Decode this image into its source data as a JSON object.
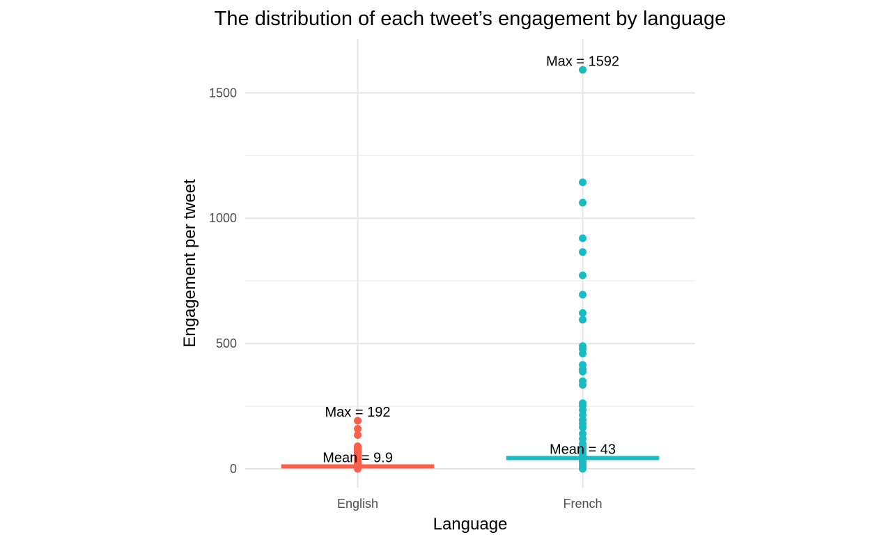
{
  "chart_data": {
    "type": "scatter",
    "title": "The distribution of each tweet’s engagement by language",
    "xlabel": "Language",
    "ylabel": "Engagement per tweet",
    "categories": [
      "English",
      "French"
    ],
    "ylim": [
      -75,
      1715
    ],
    "yticks": [
      0,
      500,
      1000,
      1500
    ],
    "grid": true,
    "legend": "none",
    "series": [
      {
        "category": "English",
        "color": "#F8604A",
        "points": [
          192,
          160,
          135,
          90,
          82,
          75,
          70,
          65,
          60,
          55,
          50,
          45,
          40,
          35,
          30,
          25,
          20,
          15,
          10,
          5,
          0
        ],
        "mean": 9.9,
        "mean_label": "Mean = 9.9",
        "max": 192,
        "max_label": "Max = 192"
      },
      {
        "category": "French",
        "color": "#1ABCC4",
        "points": [
          1592,
          1143,
          1062,
          920,
          865,
          772,
          695,
          622,
          595,
          490,
          478,
          460,
          415,
          398,
          388,
          350,
          335,
          262,
          252,
          235,
          215,
          195,
          180,
          165,
          140,
          120,
          100,
          90,
          80,
          70,
          60,
          50,
          45,
          40,
          30,
          20,
          10,
          0
        ],
        "mean": 43,
        "mean_label": "Mean = 43",
        "max": 1592,
        "max_label": "Max = 1592"
      }
    ]
  }
}
